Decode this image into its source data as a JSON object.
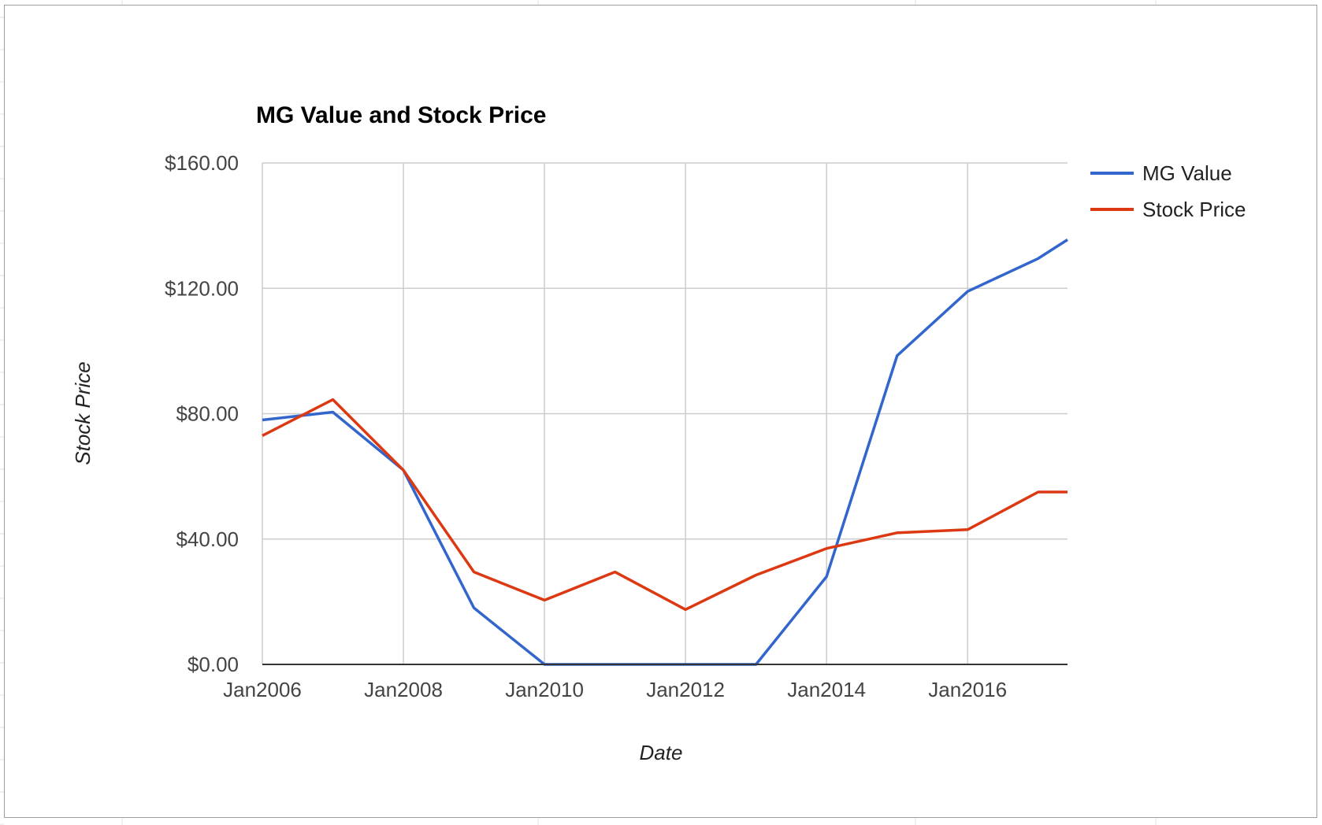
{
  "chart_data": {
    "type": "line",
    "title": "MG Value and Stock Price",
    "xlabel": "Date",
    "ylabel": "Stock Price",
    "x": [
      "2006-01",
      "2007-01",
      "2008-01",
      "2009-01",
      "2010-01",
      "2011-01",
      "2012-01",
      "2013-01",
      "2014-01",
      "2015-01",
      "2016-01",
      "2017-01",
      "2017-06"
    ],
    "series": [
      {
        "name": "MG Value",
        "color": "#3366cc",
        "values": [
          78,
          80.5,
          62,
          18,
          0,
          0,
          0,
          0,
          28,
          98.5,
          119,
          129.5,
          135.5
        ]
      },
      {
        "name": "Stock Price",
        "color": "#dc3912",
        "values": [
          73,
          84.5,
          62,
          29.5,
          20.5,
          29.5,
          17.5,
          28.5,
          37,
          42,
          43,
          55,
          55
        ]
      }
    ],
    "xlim": [
      "2006-01",
      "2017-06"
    ],
    "ylim": [
      0,
      160
    ],
    "y_ticks": [
      "$0.00",
      "$40.00",
      "$80.00",
      "$120.00",
      "$160.00"
    ],
    "x_ticks": [
      "Jan2006",
      "Jan2008",
      "Jan2010",
      "Jan2012",
      "Jan2014",
      "Jan2016"
    ],
    "grid": true,
    "legend": "right",
    "colors": {
      "gridline": "#cccccc",
      "baseline": "#333333"
    }
  }
}
